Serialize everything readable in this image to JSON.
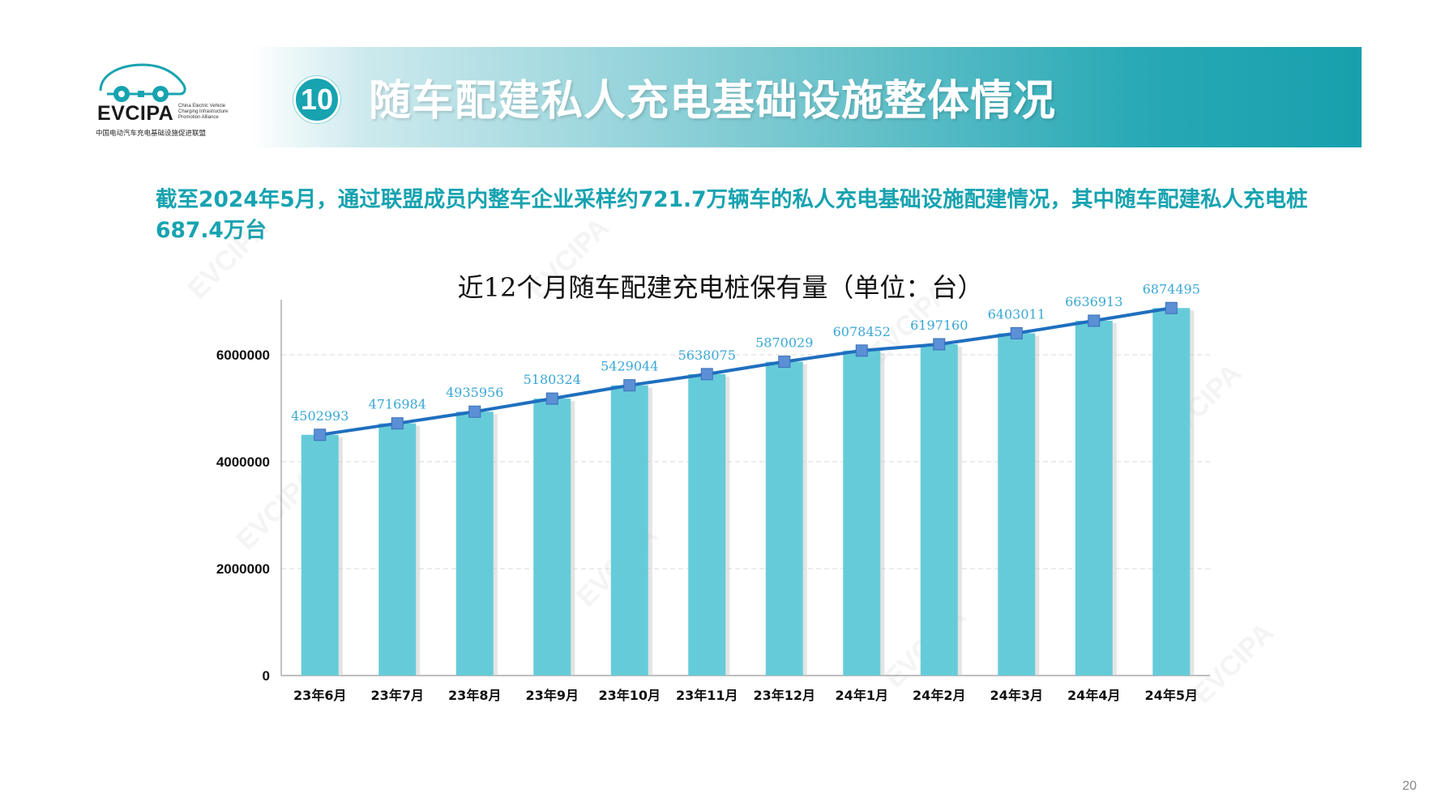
{
  "logo": {
    "name": "EVCIPA",
    "en_lines": [
      "China Electric Vehicle",
      "Charging Infrastructure",
      "Promotion Alliance"
    ],
    "cn": "中国电动汽车充电基础设施促进联盟"
  },
  "header": {
    "number": "10",
    "title": "随车配建私人充电基础设施整体情况"
  },
  "summary": "截至2024年5月，通过联盟成员内整车企业采样约721.7万辆车的私人充电基础设施配建情况，其中随车配建私人充电桩687.4万台",
  "page_number": "20",
  "watermark_text": "EVCIPA",
  "colors": {
    "accent": "#17a3b0",
    "bar": "#66cbd9",
    "line": "#1f6fbf",
    "marker": "#5b8fd6",
    "label": "#3aa7d6"
  },
  "chart_data": {
    "type": "bar",
    "title": "近12个月随车配建充电桩保有量（单位：台）",
    "categories": [
      "23年6月",
      "23年7月",
      "23年8月",
      "23年9月",
      "23年10月",
      "23年11月",
      "23年12月",
      "24年1月",
      "24年2月",
      "24年3月",
      "24年4月",
      "24年5月"
    ],
    "values": [
      4502993,
      4716984,
      4935956,
      5180324,
      5429044,
      5638075,
      5870029,
      6078452,
      6197160,
      6403011,
      6636913,
      6874495
    ],
    "overlay_line": true,
    "ylim": [
      0,
      7000000
    ],
    "yticks": [
      0,
      2000000,
      4000000,
      6000000
    ],
    "ytick_labels": [
      "0",
      "2000000",
      "4000000",
      "6000000"
    ],
    "grid": true,
    "legend": "none"
  }
}
